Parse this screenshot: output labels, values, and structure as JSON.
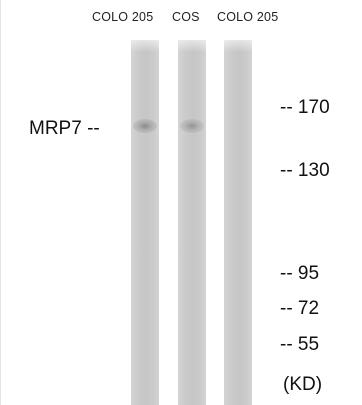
{
  "lanes": [
    {
      "label": "COLO 205",
      "has_band": true
    },
    {
      "label": "COS",
      "has_band": true
    },
    {
      "label": "COLO 205",
      "has_band": false
    }
  ],
  "protein_label": "MRP7 --",
  "markers": [
    "-- 170",
    "-- 130",
    "-- 95",
    "-- 72",
    "-- 55"
  ],
  "unit_label": "(KD)",
  "colors": {
    "lane": "#c9c9c9",
    "band": "#8a8a8a",
    "text": "#111111"
  }
}
